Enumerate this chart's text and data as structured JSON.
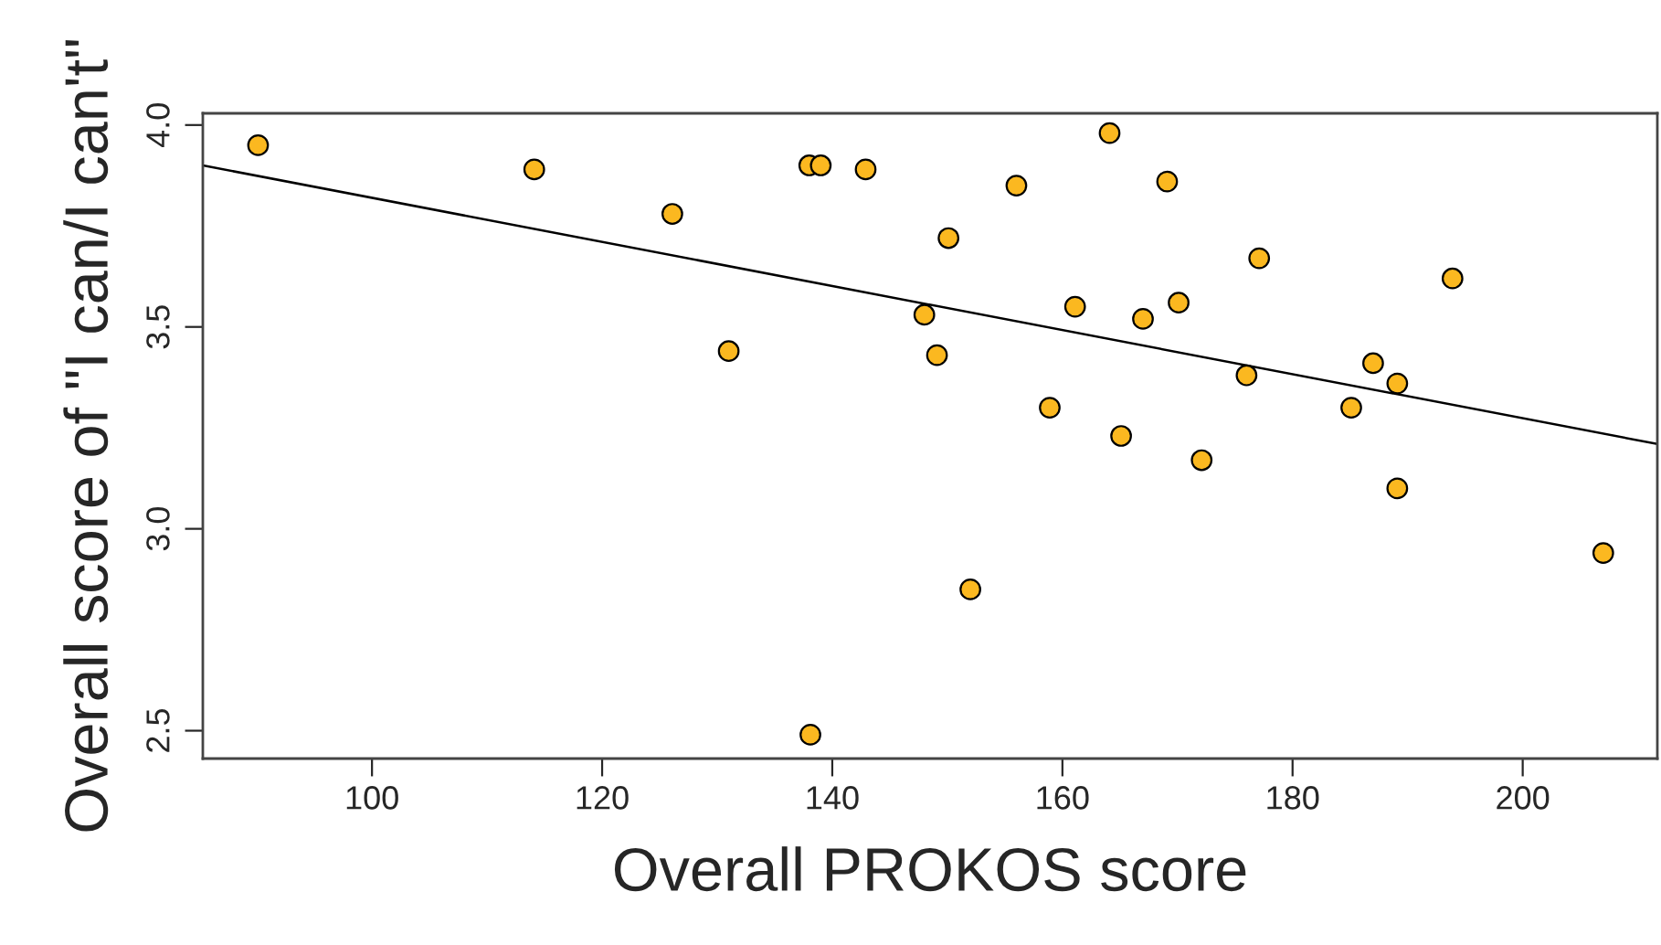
{
  "chart_data": {
    "type": "scatter",
    "xlabel": "Overall PROKOS score",
    "ylabel": "Overall score of \"I can/I can't\"",
    "xlim": [
      85.3,
      211.7
    ],
    "ylim": [
      2.431,
      4.029
    ],
    "xticks": [
      100,
      120,
      140,
      160,
      180,
      200
    ],
    "yticks": [
      {
        "value": 2.5,
        "label": "2.5"
      },
      {
        "value": 3.0,
        "label": "3.0"
      },
      {
        "value": 3.5,
        "label": "3.5"
      },
      {
        "value": 4.0,
        "label": "4.0"
      }
    ],
    "grid": false,
    "series": [
      {
        "marker": "circle",
        "color": "#fbb820",
        "x": [
          90.1,
          114.1,
          126.1,
          131.0,
          138.0,
          139.0,
          142.9,
          138.1,
          164.1,
          156.0,
          169.1,
          150.1,
          177.1,
          193.9,
          161.1,
          148.0,
          167.0,
          170.1,
          149.1,
          187.0,
          176.0,
          189.1,
          158.9,
          185.1,
          165.1,
          172.1,
          189.1,
          207.0,
          152.0
        ],
        "values": [
          3.95,
          3.89,
          3.78,
          3.44,
          3.9,
          3.9,
          3.89,
          2.49,
          3.98,
          3.85,
          3.86,
          3.72,
          3.67,
          3.62,
          3.55,
          3.53,
          3.52,
          3.56,
          3.43,
          3.41,
          3.38,
          3.36,
          3.3,
          3.3,
          3.23,
          3.17,
          3.1,
          2.94,
          2.85
        ]
      },
      {
        "type": "line",
        "marker": "none",
        "color": "#000000",
        "x": [
          85.3,
          211.7
        ],
        "values": [
          3.9,
          3.21
        ]
      }
    ]
  }
}
